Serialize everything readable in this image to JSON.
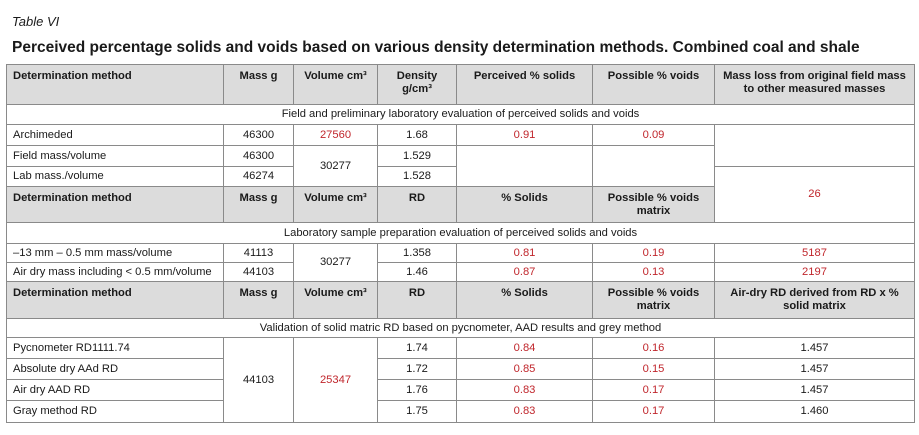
{
  "label": "Table VI",
  "title": "Perceived percentage solids and voids based on various density determination methods. Combined coal and shale",
  "header1": [
    "Determination method",
    "Mass g",
    "Volume cm³",
    "Density g/cm³",
    "Perceived % solids",
    "Possible % voids",
    "Mass loss from original field mass to other measured masses"
  ],
  "section1": "Field and preliminary laboratory evaluation of perceived solids and voids",
  "rows1": [
    {
      "method": "Archimeded",
      "mass": "46300",
      "volume": "27560",
      "density": "1.68",
      "solids": "0.91",
      "voids": "0.09"
    },
    {
      "method": "Field mass/volume",
      "mass": "46300",
      "density": "1.529"
    },
    {
      "method": "Lab mass./volume",
      "mass": "46274",
      "density": "1.528"
    }
  ],
  "rows1_shared_volume": "30277",
  "rows1_mass_loss": "26",
  "header2": [
    "Determination method",
    "Mass g",
    "Volume cm³",
    "RD",
    "% Solids",
    "Possible % voids matrix"
  ],
  "section2": "Laboratory sample preparation evaluation of perceived solids and voids",
  "rows2": [
    {
      "method": "–13 mm – 0.5 mm mass/volume",
      "mass": "41113",
      "density": "1.358",
      "solids": "0.81",
      "voids": "0.19",
      "loss": "5187"
    },
    {
      "method": "Air dry mass including < 0.5 mm/volume",
      "mass": "44103",
      "density": "1.46",
      "solids": "0.87",
      "voids": "0.13",
      "loss": "2197"
    }
  ],
  "rows2_shared_volume": "30277",
  "header3": [
    "Determination method",
    "Mass g",
    "Volume cm³",
    "RD",
    "% Solids",
    "Possible % voids matrix",
    "Air-dry RD derived from RD x % solid matrix"
  ],
  "section3": "Validation of solid matric RD based on pycnometer, AAD results and grey method",
  "rows3": [
    {
      "method": "Pycnometer RD1111.74",
      "rd": "1.74",
      "solids": "0.84",
      "voids": "0.16",
      "airdry": "1.457"
    },
    {
      "method": "Absolute dry AAd RD",
      "rd": "1.72",
      "solids": "0.85",
      "voids": "0.15",
      "airdry": "1.457"
    },
    {
      "method": "Air dry AAD RD",
      "rd": "1.76",
      "solids": "0.83",
      "voids": "0.17",
      "airdry": "1.457"
    },
    {
      "method": "Gray method RD",
      "rd": "1.75",
      "solids": "0.83",
      "voids": "0.17",
      "airdry": "1.460"
    }
  ],
  "rows3_mass": "44103",
  "rows3_volume": "25347",
  "colors": {
    "accent_red": "#c0262c",
    "header_grey": "#dcdcdc",
    "border": "#8a8a8a"
  }
}
